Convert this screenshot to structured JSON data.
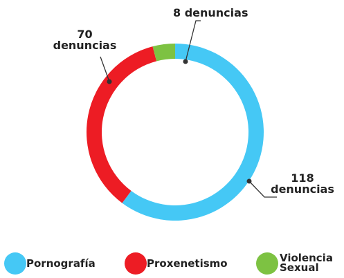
{
  "chart_data": {
    "type": "donut",
    "categories": [
      "Pornografía",
      "Proxenetismo",
      "Violencia Sexual"
    ],
    "values": [
      118,
      70,
      8
    ],
    "value_labels": [
      "118 denuncias",
      "70 denuncias",
      "8 denuncias"
    ],
    "colors": [
      "#45c8f5",
      "#ed1c24",
      "#7dc242"
    ]
  }
}
